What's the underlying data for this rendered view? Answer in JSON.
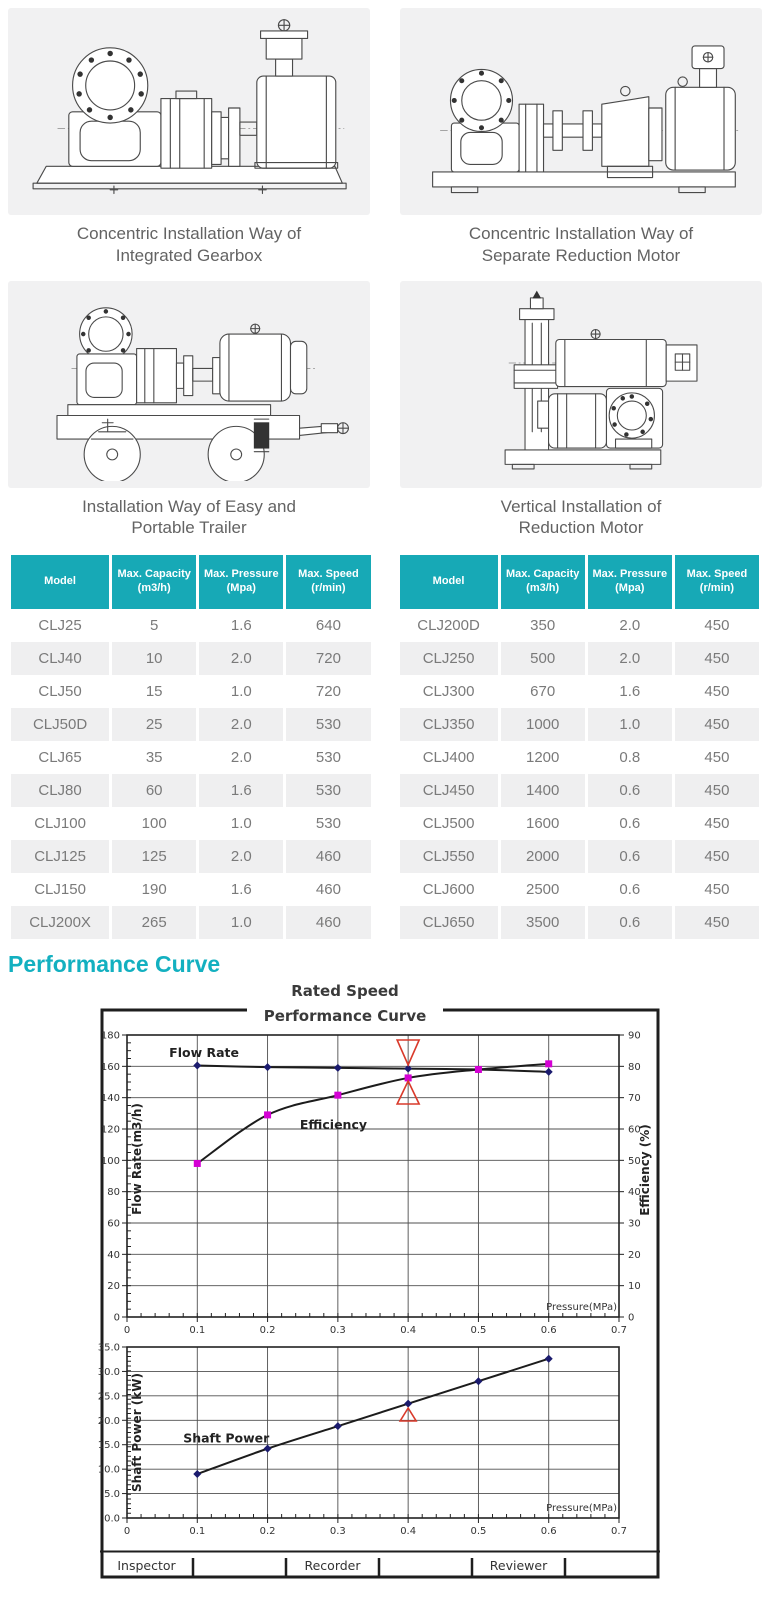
{
  "figures": [
    {
      "caption_line1": "Concentric Installation Way of",
      "caption_line2": "Integrated Gearbox"
    },
    {
      "caption_line1": "Concentric Installation Way of",
      "caption_line2": "Separate Reduction Motor"
    },
    {
      "caption_line1": "Installation Way of Easy and",
      "caption_line2": "Portable Trailer"
    },
    {
      "caption_line1": "Vertical Installation of",
      "caption_line2": "Reduction Motor"
    }
  ],
  "tables": {
    "columns": [
      {
        "line1": "Model",
        "line2": ""
      },
      {
        "line1": "Max. Capacity",
        "line2": "(m3/h)"
      },
      {
        "line1": "Max. Pressure",
        "line2": "(Mpa)"
      },
      {
        "line1": "Max. Speed",
        "line2": "(r/min)"
      }
    ],
    "left_rows": [
      [
        "CLJ25",
        "5",
        "1.6",
        "640"
      ],
      [
        "CLJ40",
        "10",
        "2.0",
        "720"
      ],
      [
        "CLJ50",
        "15",
        "1.0",
        "720"
      ],
      [
        "CLJ50D",
        "25",
        "2.0",
        "530"
      ],
      [
        "CLJ65",
        "35",
        "2.0",
        "530"
      ],
      [
        "CLJ80",
        "60",
        "1.6",
        "530"
      ],
      [
        "CLJ100",
        "100",
        "1.0",
        "530"
      ],
      [
        "CLJ125",
        "125",
        "2.0",
        "460"
      ],
      [
        "CLJ150",
        "190",
        "1.6",
        "460"
      ],
      [
        "CLJ200X",
        "265",
        "1.0",
        "460"
      ]
    ],
    "right_rows": [
      [
        "CLJ200D",
        "350",
        "2.0",
        "450"
      ],
      [
        "CLJ250",
        "500",
        "2.0",
        "450"
      ],
      [
        "CLJ300",
        "670",
        "1.6",
        "450"
      ],
      [
        "CLJ350",
        "1000",
        "1.0",
        "450"
      ],
      [
        "CLJ400",
        "1200",
        "0.8",
        "450"
      ],
      [
        "CLJ450",
        "1400",
        "0.6",
        "450"
      ],
      [
        "CLJ500",
        "1600",
        "0.6",
        "450"
      ],
      [
        "CLJ550",
        "2000",
        "0.6",
        "450"
      ],
      [
        "CLJ600",
        "2500",
        "0.6",
        "450"
      ],
      [
        "CLJ650",
        "3500",
        "0.6",
        "450"
      ]
    ]
  },
  "section_heading": "Performance Curve",
  "colors": {
    "table_header_teal": "#17a9b6",
    "heading_teal": "#13b0c0",
    "flow_marker": "#1b1b6e",
    "efficiency_marker": "#d400d4",
    "red_marker": "#d93a2b"
  },
  "chart_data": {
    "type": "line",
    "title_line1": "Rated Speed",
    "title_line2": "Performance Curve",
    "upper_chart": {
      "x": [
        0.1,
        0.2,
        0.3,
        0.4,
        0.5,
        0.6
      ],
      "series": [
        {
          "name": "Flow Rate",
          "axis": "left",
          "values": [
            160.5,
            159.5,
            159,
            158.5,
            158,
            156.5
          ],
          "marker": "diamond"
        },
        {
          "name": "Efficiency",
          "axis": "right",
          "values": [
            49,
            64.5,
            70.8,
            76.3,
            79,
            80.8
          ],
          "marker": "square"
        }
      ],
      "xlim": [
        0,
        0.7
      ],
      "ylim_left": [
        0,
        180
      ],
      "ylim_right": [
        0,
        90
      ],
      "xtick_labels": [
        "0",
        "0.1",
        "0.2",
        "0.3",
        "0.4",
        "0.5",
        "0.6",
        "0.7"
      ],
      "ytick_labels_left": [
        "0",
        "20",
        "40",
        "60",
        "80",
        "100",
        "120",
        "140",
        "160",
        "180"
      ],
      "ytick_labels_right": [
        "0",
        "10",
        "20",
        "30",
        "40",
        "50",
        "60",
        "70",
        "80",
        "90"
      ],
      "xlabel": "Pressure(MPa)",
      "ylabel_left": "Flow Rate(m3/h)",
      "ylabel_right": "Efficiency (%)",
      "annotations": [
        {
          "text": "Flow Rate",
          "x": 0.06,
          "y": 166
        },
        {
          "text": "Efficiency",
          "x": 0.246,
          "y": 120
        }
      ],
      "red_marker_x": 0.4
    },
    "lower_chart": {
      "x": [
        0.1,
        0.2,
        0.3,
        0.4,
        0.5,
        0.6
      ],
      "series": [
        {
          "name": "Shaft Power",
          "values": [
            9,
            14.2,
            18.8,
            23.4,
            28,
            32.6
          ],
          "marker": "diamond"
        }
      ],
      "xlim": [
        0,
        0.7
      ],
      "ylim": [
        0,
        35
      ],
      "xtick_labels": [
        "0",
        "0.1",
        "0.2",
        "0.3",
        "0.4",
        "0.5",
        "0.6",
        "0.7"
      ],
      "ytick_labels": [
        "0.0",
        "5.0",
        "10.0",
        "15.0",
        "20.0",
        "25.0",
        "30.0",
        "35.0"
      ],
      "xlabel": "Pressure(MPa)",
      "ylabel": "Shaft Power (kW)",
      "annotations": [
        {
          "text": "Shaft Power",
          "x": 0.08,
          "y": 15.5
        }
      ],
      "red_marker_x": 0.4
    },
    "footer_cells": [
      "Inspector",
      "",
      "Recorder",
      "",
      "Reviewer",
      ""
    ]
  }
}
